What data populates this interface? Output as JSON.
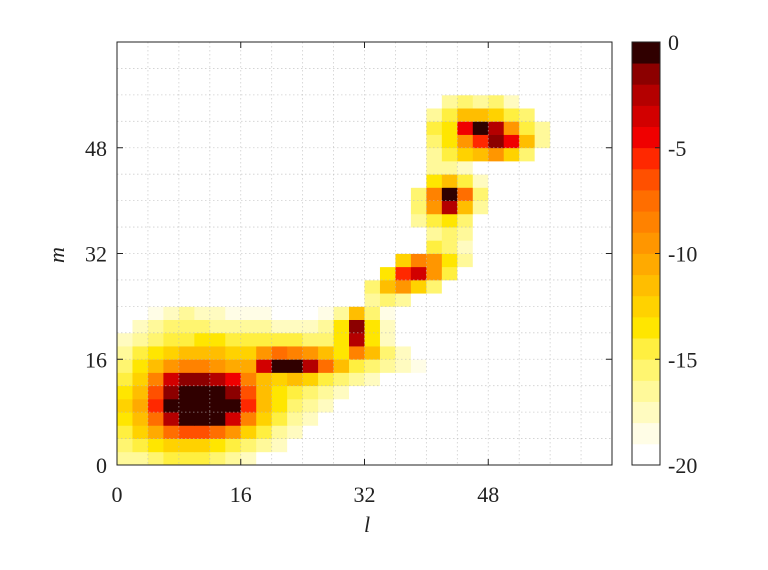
{
  "chart_data": {
    "type": "heatmap",
    "x_label": "l",
    "y_label": "m",
    "xlim": [
      0,
      64
    ],
    "ylim": [
      0,
      64
    ],
    "xticks": [
      0,
      16,
      32,
      48
    ],
    "yticks": [
      0,
      16,
      32,
      48
    ],
    "grid": true,
    "minor_grid": true,
    "clim": [
      -20,
      0
    ],
    "cticks": [
      0,
      -5,
      -10,
      -15,
      -20
    ],
    "colormap": [
      "#ffffff",
      "#fffde6",
      "#fffbc0",
      "#fff99a",
      "#fff570",
      "#ffef40",
      "#ffe600",
      "#ffd200",
      "#ffbe00",
      "#ffaa00",
      "#ff9600",
      "#ff8200",
      "#ff6e00",
      "#ff5000",
      "#ff2800",
      "#f00000",
      "#d20000",
      "#b40000",
      "#8c0000",
      "#300000"
    ],
    "values": [
      [
        -17,
        -17,
        -16,
        -15,
        -15,
        -15,
        -16,
        -17,
        -18,
        -20,
        -20,
        -20,
        -20,
        -20,
        -20,
        -20,
        -20,
        -20,
        -20,
        -20,
        -20,
        -20,
        -20,
        -20,
        -20,
        -20,
        -20,
        -20,
        -20,
        -20,
        -20,
        -20
      ],
      [
        -16,
        -15,
        -14,
        -13,
        -13,
        -13,
        -14,
        -15,
        -16,
        -17,
        -18,
        -20,
        -20,
        -20,
        -20,
        -20,
        -20,
        -20,
        -20,
        -20,
        -20,
        -20,
        -20,
        -20,
        -20,
        -20,
        -20,
        -20,
        -20,
        -20,
        -20,
        -20
      ],
      [
        -15,
        -13,
        -11,
        -8,
        -7,
        -7,
        -8,
        -10,
        -13,
        -15,
        -17,
        -18,
        -20,
        -20,
        -20,
        -20,
        -20,
        -20,
        -20,
        -20,
        -20,
        -20,
        -20,
        -20,
        -20,
        -20,
        -20,
        -20,
        -20,
        -20,
        -20,
        -20
      ],
      [
        -14,
        -12,
        -8,
        -3,
        -1,
        0,
        -1,
        -4,
        -9,
        -13,
        -15,
        -17,
        -18,
        -20,
        -20,
        -20,
        -20,
        -20,
        -20,
        -20,
        -20,
        -20,
        -20,
        -20,
        -20,
        -20,
        -20,
        -20,
        -20,
        -20,
        -20,
        -20
      ],
      [
        -13,
        -11,
        -6,
        -1,
        0,
        0,
        0,
        -1,
        -6,
        -12,
        -14,
        -16,
        -17,
        -18,
        -20,
        -20,
        -20,
        -20,
        -20,
        -20,
        -20,
        -20,
        -20,
        -20,
        -20,
        -20,
        -20,
        -20,
        -20,
        -20,
        -20,
        -20
      ],
      [
        -14,
        -12,
        -7,
        -2,
        0,
        0,
        0,
        -2,
        -7,
        -12,
        -14,
        -15,
        -16,
        -17,
        -18,
        -20,
        -20,
        -20,
        -20,
        -20,
        -20,
        -20,
        -20,
        -20,
        -20,
        -20,
        -20,
        -20,
        -20,
        -20,
        -20,
        -20
      ],
      [
        -15,
        -13,
        -9,
        -4,
        -2,
        -2,
        -3,
        -5,
        -9,
        -12,
        -13,
        -12,
        -13,
        -15,
        -16,
        -17,
        -18,
        -20,
        -20,
        -20,
        -20,
        -20,
        -20,
        -20,
        -20,
        -20,
        -20,
        -20,
        -20,
        -20,
        -20,
        -20
      ],
      [
        -16,
        -14,
        -12,
        -10,
        -9,
        -9,
        -10,
        -11,
        -11,
        -4,
        0,
        -1,
        -3,
        -8,
        -12,
        -15,
        -16,
        -17,
        -18,
        -19,
        -20,
        -20,
        -20,
        -20,
        -20,
        -20,
        -20,
        -20,
        -20,
        -20,
        -20,
        -20
      ],
      [
        -17,
        -15,
        -14,
        -13,
        -12,
        -12,
        -12,
        -13,
        -13,
        -10,
        -8,
        -9,
        -10,
        -12,
        -14,
        -9,
        -12,
        -16,
        -18,
        -20,
        -20,
        -20,
        -20,
        -20,
        -20,
        -20,
        -20,
        -20,
        -20,
        -20,
        -20,
        -20
      ],
      [
        -18,
        -17,
        -16,
        -15,
        -15,
        -14,
        -14,
        -15,
        -15,
        -15,
        -15,
        -15,
        -16,
        -16,
        -14,
        -3,
        -14,
        -18,
        -20,
        -20,
        -20,
        -20,
        -20,
        -20,
        -20,
        -20,
        -20,
        -20,
        -20,
        -20,
        -20,
        -20
      ],
      [
        -20,
        -18,
        -17,
        -16,
        -16,
        -16,
        -17,
        -17,
        -17,
        -17,
        -18,
        -18,
        -18,
        -17,
        -14,
        -2,
        -14,
        -18,
        -20,
        -20,
        -20,
        -20,
        -20,
        -20,
        -20,
        -20,
        -20,
        -20,
        -20,
        -20,
        -20,
        -20
      ],
      [
        -20,
        -20,
        -19,
        -18,
        -17,
        -18,
        -18,
        -19,
        -19,
        -19,
        -20,
        -20,
        -20,
        -19,
        -17,
        -12,
        -16,
        -19,
        -20,
        -20,
        -20,
        -20,
        -20,
        -20,
        -20,
        -20,
        -20,
        -20,
        -20,
        -20,
        -20,
        -20
      ],
      [
        -20,
        -20,
        -20,
        -20,
        -20,
        -20,
        -20,
        -20,
        -20,
        -20,
        -20,
        -20,
        -20,
        -20,
        -20,
        -20,
        -17,
        -16,
        -17,
        -20,
        -20,
        -20,
        -20,
        -20,
        -20,
        -20,
        -20,
        -20,
        -20,
        -20,
        -20,
        -20
      ],
      [
        -20,
        -20,
        -20,
        -20,
        -20,
        -20,
        -20,
        -20,
        -20,
        -20,
        -20,
        -20,
        -20,
        -20,
        -20,
        -20,
        -16,
        -12,
        -10,
        -13,
        -16,
        -20,
        -20,
        -20,
        -20,
        -20,
        -20,
        -20,
        -20,
        -20,
        -20,
        -20
      ],
      [
        -20,
        -20,
        -20,
        -20,
        -20,
        -20,
        -20,
        -20,
        -20,
        -20,
        -20,
        -20,
        -20,
        -20,
        -20,
        -20,
        -20,
        -14,
        -6,
        -4,
        -10,
        -15,
        -20,
        -20,
        -20,
        -20,
        -20,
        -20,
        -20,
        -20,
        -20,
        -20
      ],
      [
        -20,
        -20,
        -20,
        -20,
        -20,
        -20,
        -20,
        -20,
        -20,
        -20,
        -20,
        -20,
        -20,
        -20,
        -20,
        -20,
        -20,
        -20,
        -13,
        -9,
        -10,
        -14,
        -17,
        -20,
        -20,
        -20,
        -20,
        -20,
        -20,
        -20,
        -20,
        -20
      ],
      [
        -20,
        -20,
        -20,
        -20,
        -20,
        -20,
        -20,
        -20,
        -20,
        -20,
        -20,
        -20,
        -20,
        -20,
        -20,
        -20,
        -20,
        -20,
        -20,
        -20,
        -15,
        -16,
        -18,
        -20,
        -20,
        -20,
        -20,
        -20,
        -20,
        -20,
        -20,
        -20
      ],
      [
        -20,
        -20,
        -20,
        -20,
        -20,
        -20,
        -20,
        -20,
        -20,
        -20,
        -20,
        -20,
        -20,
        -20,
        -20,
        -20,
        -20,
        -20,
        -20,
        -20,
        -17,
        -16,
        -17,
        -20,
        -20,
        -20,
        -20,
        -20,
        -20,
        -20,
        -20,
        -20
      ],
      [
        -20,
        -20,
        -20,
        -20,
        -20,
        -20,
        -20,
        -20,
        -20,
        -20,
        -20,
        -20,
        -20,
        -20,
        -20,
        -20,
        -20,
        -20,
        -20,
        -17,
        -15,
        -14,
        -16,
        -20,
        -20,
        -20,
        -20,
        -20,
        -20,
        -20,
        -20,
        -20
      ],
      [
        -20,
        -20,
        -20,
        -20,
        -20,
        -20,
        -20,
        -20,
        -20,
        -20,
        -20,
        -20,
        -20,
        -20,
        -20,
        -20,
        -20,
        -20,
        -20,
        -16,
        -10,
        -3,
        -12,
        -17,
        -20,
        -20,
        -20,
        -20,
        -20,
        -20,
        -20,
        -20
      ],
      [
        -20,
        -20,
        -20,
        -20,
        -20,
        -20,
        -20,
        -20,
        -20,
        -20,
        -20,
        -20,
        -20,
        -20,
        -20,
        -20,
        -20,
        -20,
        -20,
        -16,
        -9,
        -1,
        -8,
        -16,
        -20,
        -20,
        -20,
        -20,
        -20,
        -20,
        -20,
        -20
      ],
      [
        -20,
        -20,
        -20,
        -20,
        -20,
        -20,
        -20,
        -20,
        -20,
        -20,
        -20,
        -20,
        -20,
        -20,
        -20,
        -20,
        -20,
        -20,
        -20,
        -20,
        -14,
        -12,
        -15,
        -18,
        -20,
        -20,
        -20,
        -20,
        -20,
        -20,
        -20,
        -20
      ],
      [
        -20,
        -20,
        -20,
        -20,
        -20,
        -20,
        -20,
        -20,
        -20,
        -20,
        -20,
        -20,
        -20,
        -20,
        -20,
        -20,
        -20,
        -20,
        -20,
        -20,
        -17,
        -17,
        -18,
        -20,
        -20,
        -20,
        -20,
        -20,
        -20,
        -20,
        -20,
        -20
      ],
      [
        -20,
        -20,
        -20,
        -20,
        -20,
        -20,
        -20,
        -20,
        -20,
        -20,
        -20,
        -20,
        -20,
        -20,
        -20,
        -20,
        -20,
        -20,
        -20,
        -20,
        -17,
        -15,
        -13,
        -12,
        -10,
        -13,
        -16,
        -20,
        -20,
        -20,
        -20,
        -20
      ],
      [
        -20,
        -20,
        -20,
        -20,
        -20,
        -20,
        -20,
        -20,
        -20,
        -20,
        -20,
        -20,
        -20,
        -20,
        -20,
        -20,
        -20,
        -20,
        -20,
        -20,
        -16,
        -14,
        -10,
        -6,
        -2,
        -5,
        -12,
        -17,
        -20,
        -20,
        -20,
        -20
      ],
      [
        -20,
        -20,
        -20,
        -20,
        -20,
        -20,
        -20,
        -20,
        -20,
        -20,
        -20,
        -20,
        -20,
        -20,
        -20,
        -20,
        -20,
        -20,
        -20,
        -20,
        -15,
        -14,
        -5,
        -1,
        -3,
        -10,
        -15,
        -17,
        -20,
        -20,
        -20,
        -20
      ],
      [
        -20,
        -20,
        -20,
        -20,
        -20,
        -20,
        -20,
        -20,
        -20,
        -20,
        -20,
        -20,
        -20,
        -20,
        -20,
        -20,
        -20,
        -20,
        -20,
        -20,
        -17,
        -15,
        -12,
        -12,
        -13,
        -15,
        -16,
        -20,
        -20,
        -20,
        -20,
        -20
      ],
      [
        -20,
        -20,
        -20,
        -20,
        -20,
        -20,
        -20,
        -20,
        -20,
        -20,
        -20,
        -20,
        -20,
        -20,
        -20,
        -20,
        -20,
        -20,
        -20,
        -20,
        -20,
        -17,
        -16,
        -17,
        -16,
        -18,
        -20,
        -20,
        -20,
        -20,
        -20,
        -20
      ],
      [
        -20,
        -20,
        -20,
        -20,
        -20,
        -20,
        -20,
        -20,
        -20,
        -20,
        -20,
        -20,
        -20,
        -20,
        -20,
        -20,
        -20,
        -20,
        -20,
        -20,
        -20,
        -20,
        -20,
        -20,
        -20,
        -20,
        -20,
        -20,
        -20,
        -20,
        -20,
        -20
      ],
      [
        -20,
        -20,
        -20,
        -20,
        -20,
        -20,
        -20,
        -20,
        -20,
        -20,
        -20,
        -20,
        -20,
        -20,
        -20,
        -20,
        -20,
        -20,
        -20,
        -20,
        -20,
        -20,
        -20,
        -20,
        -20,
        -20,
        -20,
        -20,
        -20,
        -20,
        -20,
        -20
      ],
      [
        -20,
        -20,
        -20,
        -20,
        -20,
        -20,
        -20,
        -20,
        -20,
        -20,
        -20,
        -20,
        -20,
        -20,
        -20,
        -20,
        -20,
        -20,
        -20,
        -20,
        -20,
        -20,
        -20,
        -20,
        -20,
        -20,
        -20,
        -20,
        -20,
        -20,
        -20,
        -20
      ],
      [
        -20,
        -20,
        -20,
        -20,
        -20,
        -20,
        -20,
        -20,
        -20,
        -20,
        -20,
        -20,
        -20,
        -20,
        -20,
        -20,
        -20,
        -20,
        -20,
        -20,
        -20,
        -20,
        -20,
        -20,
        -20,
        -20,
        -20,
        -20,
        -20,
        -20,
        -20,
        -20
      ]
    ]
  }
}
